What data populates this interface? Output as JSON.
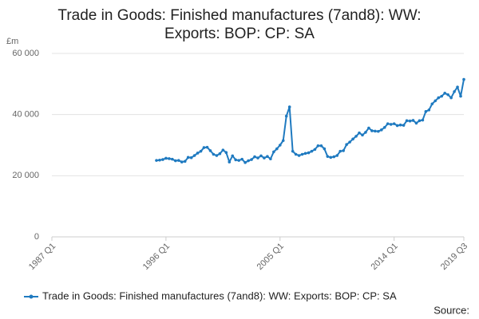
{
  "chart_data": {
    "type": "line",
    "title": "Trade in Goods: Finished manufactures (7and8): WW: Exports: BOP: CP: SA",
    "y_unit": "£m",
    "source": "Source:",
    "legend": "bottom",
    "grid": true,
    "xlim": [
      1987,
      2019.5
    ],
    "xticks": [
      {
        "value": 1987,
        "label": "1987 Q1"
      },
      {
        "value": 1996,
        "label": "1996 Q1"
      },
      {
        "value": 2005,
        "label": "2005 Q1"
      },
      {
        "value": 2014,
        "label": "2014 Q1"
      },
      {
        "value": 2019.5,
        "label": "2019 Q3"
      }
    ],
    "ylim": [
      0,
      60000
    ],
    "yticks": [
      0,
      {
        "value": 20000,
        "label": "20 000"
      },
      {
        "value": 40000,
        "label": "40 000"
      },
      {
        "value": 60000,
        "label": "60 000"
      }
    ],
    "x": [
      1995.25,
      1995.5,
      1995.75,
      1996,
      1996.25,
      1996.5,
      1996.75,
      1997,
      1997.25,
      1997.5,
      1997.75,
      1998,
      1998.25,
      1998.5,
      1998.75,
      1999,
      1999.25,
      1999.5,
      1999.75,
      2000,
      2000.25,
      2000.5,
      2000.75,
      2001,
      2001.25,
      2001.5,
      2001.75,
      2002,
      2002.25,
      2002.5,
      2002.75,
      2003,
      2003.25,
      2003.5,
      2003.75,
      2004,
      2004.25,
      2004.5,
      2004.75,
      2005,
      2005.25,
      2005.5,
      2005.75,
      2006,
      2006.25,
      2006.5,
      2006.75,
      2007,
      2007.25,
      2007.5,
      2007.75,
      2008,
      2008.25,
      2008.5,
      2008.75,
      2009,
      2009.25,
      2009.5,
      2009.75,
      2010,
      2010.25,
      2010.5,
      2010.75,
      2011,
      2011.25,
      2011.5,
      2011.75,
      2012,
      2012.25,
      2012.5,
      2012.75,
      2013,
      2013.25,
      2013.5,
      2013.75,
      2014,
      2014.25,
      2014.5,
      2014.75,
      2015,
      2015.25,
      2015.5,
      2015.75,
      2016,
      2016.25,
      2016.5,
      2016.75,
      2017,
      2017.25,
      2017.5,
      2017.75,
      2018,
      2018.25,
      2018.5,
      2018.75,
      2019,
      2019.25,
      2019.5
    ],
    "series": [
      {
        "name": "Trade in Goods: Finished manufactures (7and8): WW: Exports: BOP: CP: SA",
        "color": "#1f7ac0",
        "values": [
          25000,
          25100,
          25300,
          25700,
          25600,
          25400,
          24900,
          25000,
          24500,
          24700,
          26000,
          25900,
          26600,
          27400,
          28000,
          29200,
          29300,
          28200,
          27000,
          26600,
          27200,
          28400,
          27600,
          24500,
          26500,
          25200,
          25000,
          25400,
          24300,
          24900,
          25300,
          26200,
          25800,
          26500,
          25800,
          26300,
          25500,
          27800,
          28800,
          30000,
          31500,
          39500,
          42500,
          28000,
          27000,
          26600,
          27000,
          27300,
          27500,
          28000,
          28600,
          29800,
          29800,
          28800,
          26300,
          26000,
          26200,
          26600,
          28000,
          28200,
          30200,
          31000,
          32000,
          32900,
          34000,
          33300,
          34200,
          35600,
          34700,
          34600,
          34500,
          35000,
          35800,
          37000,
          36800,
          37000,
          36400,
          36600,
          36500,
          38000,
          37900,
          38100,
          37200,
          38000,
          38200,
          41000,
          41500,
          43500,
          44500,
          45500,
          46000,
          47000,
          46500,
          45500,
          47500,
          49000,
          46000,
          51500
        ]
      }
    ]
  }
}
